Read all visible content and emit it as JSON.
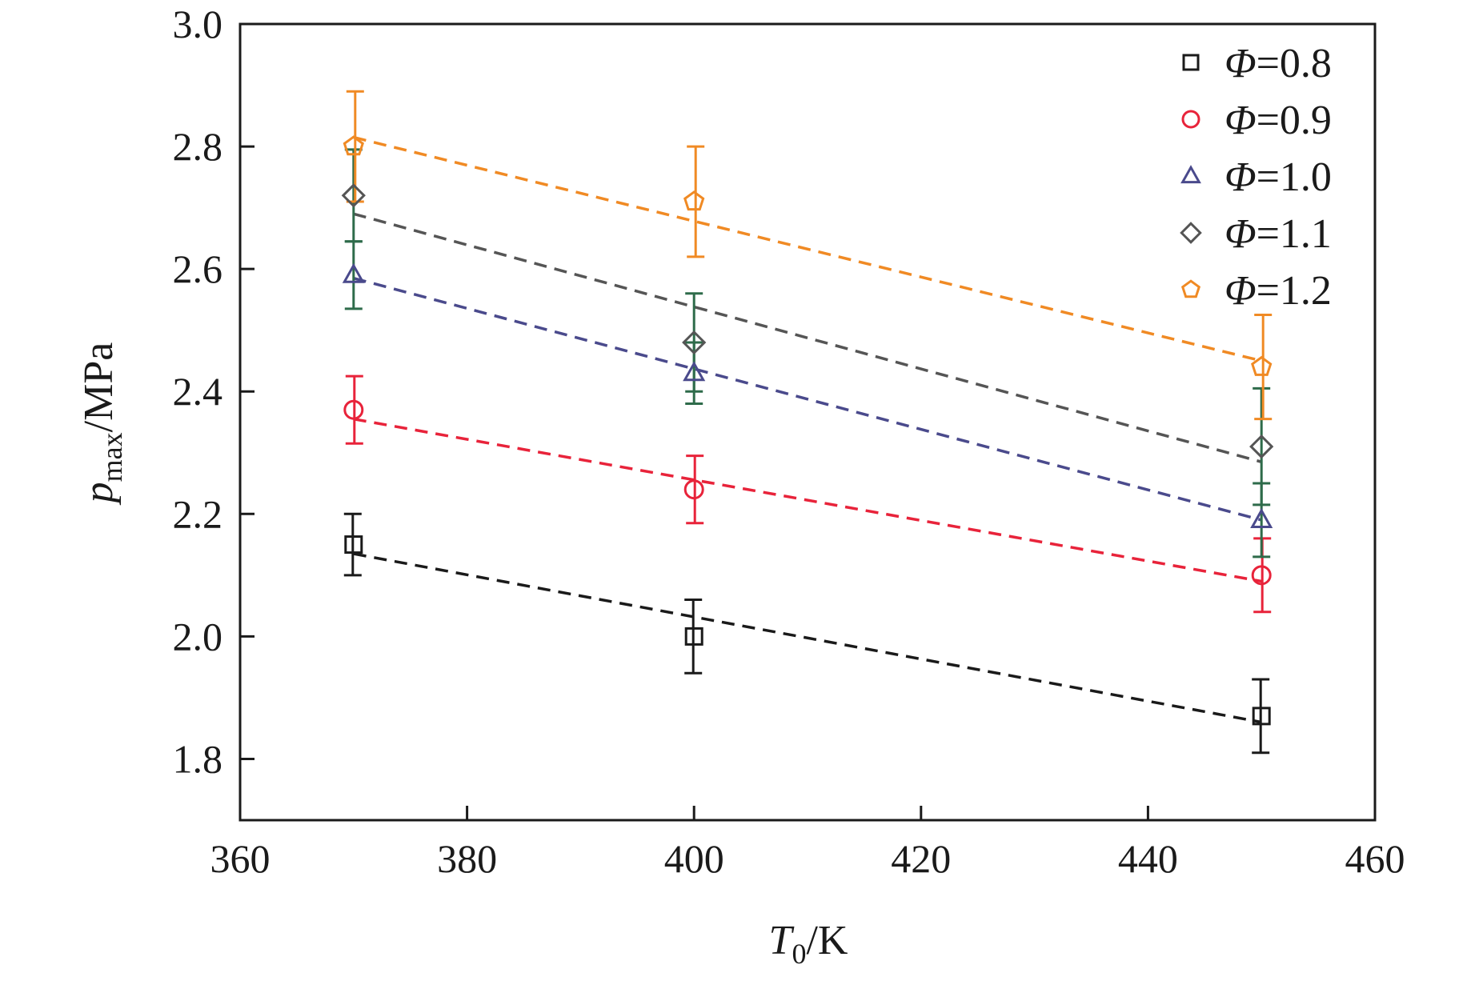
{
  "chart_data": {
    "type": "scatter",
    "title": "",
    "xlabel": {
      "symbol": "T",
      "sub": "0",
      "unit": "/K"
    },
    "ylabel": {
      "symbol": "p",
      "sub": "max",
      "unit": "/MPa"
    },
    "xlim": [
      360,
      460
    ],
    "ylim": [
      1.7,
      3.0
    ],
    "xticks": [
      "360",
      "380",
      "400",
      "420",
      "440",
      "460"
    ],
    "yticks": [
      "1.8",
      "2.0",
      "2.2",
      "2.4",
      "2.6",
      "2.8",
      "3.0"
    ],
    "grid": false,
    "legend_position": "top-right",
    "legend_prefix": "Φ",
    "series": [
      {
        "name": "=0.8",
        "marker": "square",
        "color": "#1a1a1a",
        "x": [
          370,
          400,
          450
        ],
        "y": [
          2.15,
          2.0,
          1.87
        ],
        "err": [
          0.05,
          0.06,
          0.06
        ],
        "fit": {
          "x": [
            370,
            450
          ],
          "y": [
            2.135,
            1.86
          ]
        }
      },
      {
        "name": "=0.9",
        "marker": "circle",
        "color": "#e8233a",
        "x": [
          370,
          400,
          450
        ],
        "y": [
          2.37,
          2.24,
          2.1
        ],
        "err": [
          0.055,
          0.055,
          0.06
        ],
        "fit": {
          "x": [
            370,
            450
          ],
          "y": [
            2.355,
            2.09
          ]
        }
      },
      {
        "name": "=1.0",
        "marker": "triangle",
        "color": "#4a4a8c",
        "x": [
          370,
          400,
          450
        ],
        "y": [
          2.59,
          2.43,
          2.19
        ],
        "err": [
          0.055,
          0.05,
          0.06
        ],
        "fit": {
          "x": [
            370,
            450
          ],
          "y": [
            2.585,
            2.19
          ]
        }
      },
      {
        "name": "=1.1",
        "marker": "diamond",
        "color": "#555555",
        "x": [
          370,
          400,
          450
        ],
        "y": [
          2.72,
          2.48,
          2.31
        ],
        "err": [
          0.075,
          0.08,
          0.095
        ],
        "fit": {
          "x": [
            370,
            450
          ],
          "y": [
            2.69,
            2.285
          ]
        }
      },
      {
        "name": "=1.2",
        "marker": "pentagon",
        "color": "#f08a24",
        "x": [
          370,
          400,
          450
        ],
        "y": [
          2.8,
          2.71,
          2.44
        ],
        "err": [
          0.09,
          0.09,
          0.085
        ],
        "fit": {
          "x": [
            370,
            450
          ],
          "y": [
            2.815,
            2.45
          ]
        }
      }
    ],
    "error_bar_colors": [
      "#1a1a1a",
      "#e8233a",
      "#2e6b4a",
      "#2e6b4a",
      "#f08a24"
    ]
  }
}
